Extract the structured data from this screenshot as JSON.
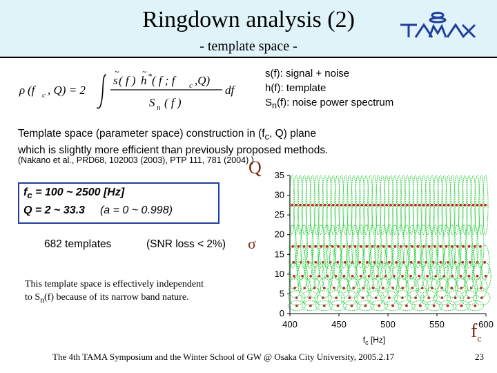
{
  "slide": {
    "title": "Ringdown analysis (2)",
    "subtitle": "- template space -",
    "logo_text": "TAMA"
  },
  "formula": {
    "rho": "ρ",
    "lhs_args": "(f",
    "lhs_c": "c",
    "lhs_q": ", Q) = 2",
    "num_s": "s",
    "num_f": "( f )",
    "num_h": "h",
    "num_star": "*",
    "num_args": "( f ; f",
    "num_c": "c",
    "num_end": ",Q)",
    "den_s": "S",
    "den_n": "n",
    "den_f": "( f )",
    "df": "df"
  },
  "definitions": [
    {
      "prefix": "s(f): signal + noise",
      "sub": "",
      "suffix": ""
    },
    {
      "prefix": "h(f): template",
      "sub": "",
      "suffix": ""
    },
    {
      "prefix": "S",
      "sub": "n",
      "suffix": "(f): noise power spectrum"
    }
  ],
  "paragraph": {
    "line1_a": "Template space (parameter space) construction in (f",
    "line1_sub": "c",
    "line1_b": ", Q) plane",
    "line2": "which is slightly more efficient than previously proposed methods."
  },
  "reference": "(Nakano et al., PRD68, 102003 (2003), PTP 111, 781 (2004) )",
  "symbols": {
    "q": "Q",
    "sigma": "σ",
    "fc": "f",
    "fc_sub": "c"
  },
  "param_box": {
    "line1_a": "f",
    "line1_sub": "c",
    "line1_b": " = 100 ~ 2500 [Hz]",
    "line2": "Q = 2 ~ 33.3",
    "line2_paren": "(a = 0 ~ 0.998)"
  },
  "templates_text": "682 templates",
  "snr_text": "(SNR loss < 2%)",
  "independence": {
    "line1": "This template space is effectively independent",
    "line2_a": "to S",
    "line2_sub": "n",
    "line2_b": "(f)  because of its narrow band nature."
  },
  "footer": "The 4th TAMA Symposium and the Winter School of GW @ Osaka City University, 2005.2.17",
  "page_number": "23",
  "colors": {
    "title_band": "#dff3f8",
    "box_border": "#1f3f9a",
    "ellipse": "#2ecc40",
    "dot": "#cc2020",
    "symbol": "#7a2a10"
  },
  "chart_data": {
    "type": "scatter",
    "xlabel": "f",
    "xlabel_sub": "c",
    "xlabel_unit": " [Hz]",
    "ylabel": "",
    "xlim": [
      400,
      600
    ],
    "ylim": [
      0,
      35
    ],
    "xticks": [
      400,
      450,
      500,
      550,
      600
    ],
    "yticks": [
      0,
      5,
      10,
      15,
      20,
      25,
      30,
      35
    ],
    "grid": false,
    "series": [
      {
        "marker": "dot",
        "rows_Q": [
          2.0,
          4.0,
          6.5,
          9.5,
          13.0,
          17.0,
          27.5
        ],
        "f_step": [
          14,
          13.5,
          10,
          8.5,
          7.5,
          5.8,
          4.2
        ]
      },
      {
        "marker": "ellipse",
        "description_free": true
      }
    ]
  }
}
